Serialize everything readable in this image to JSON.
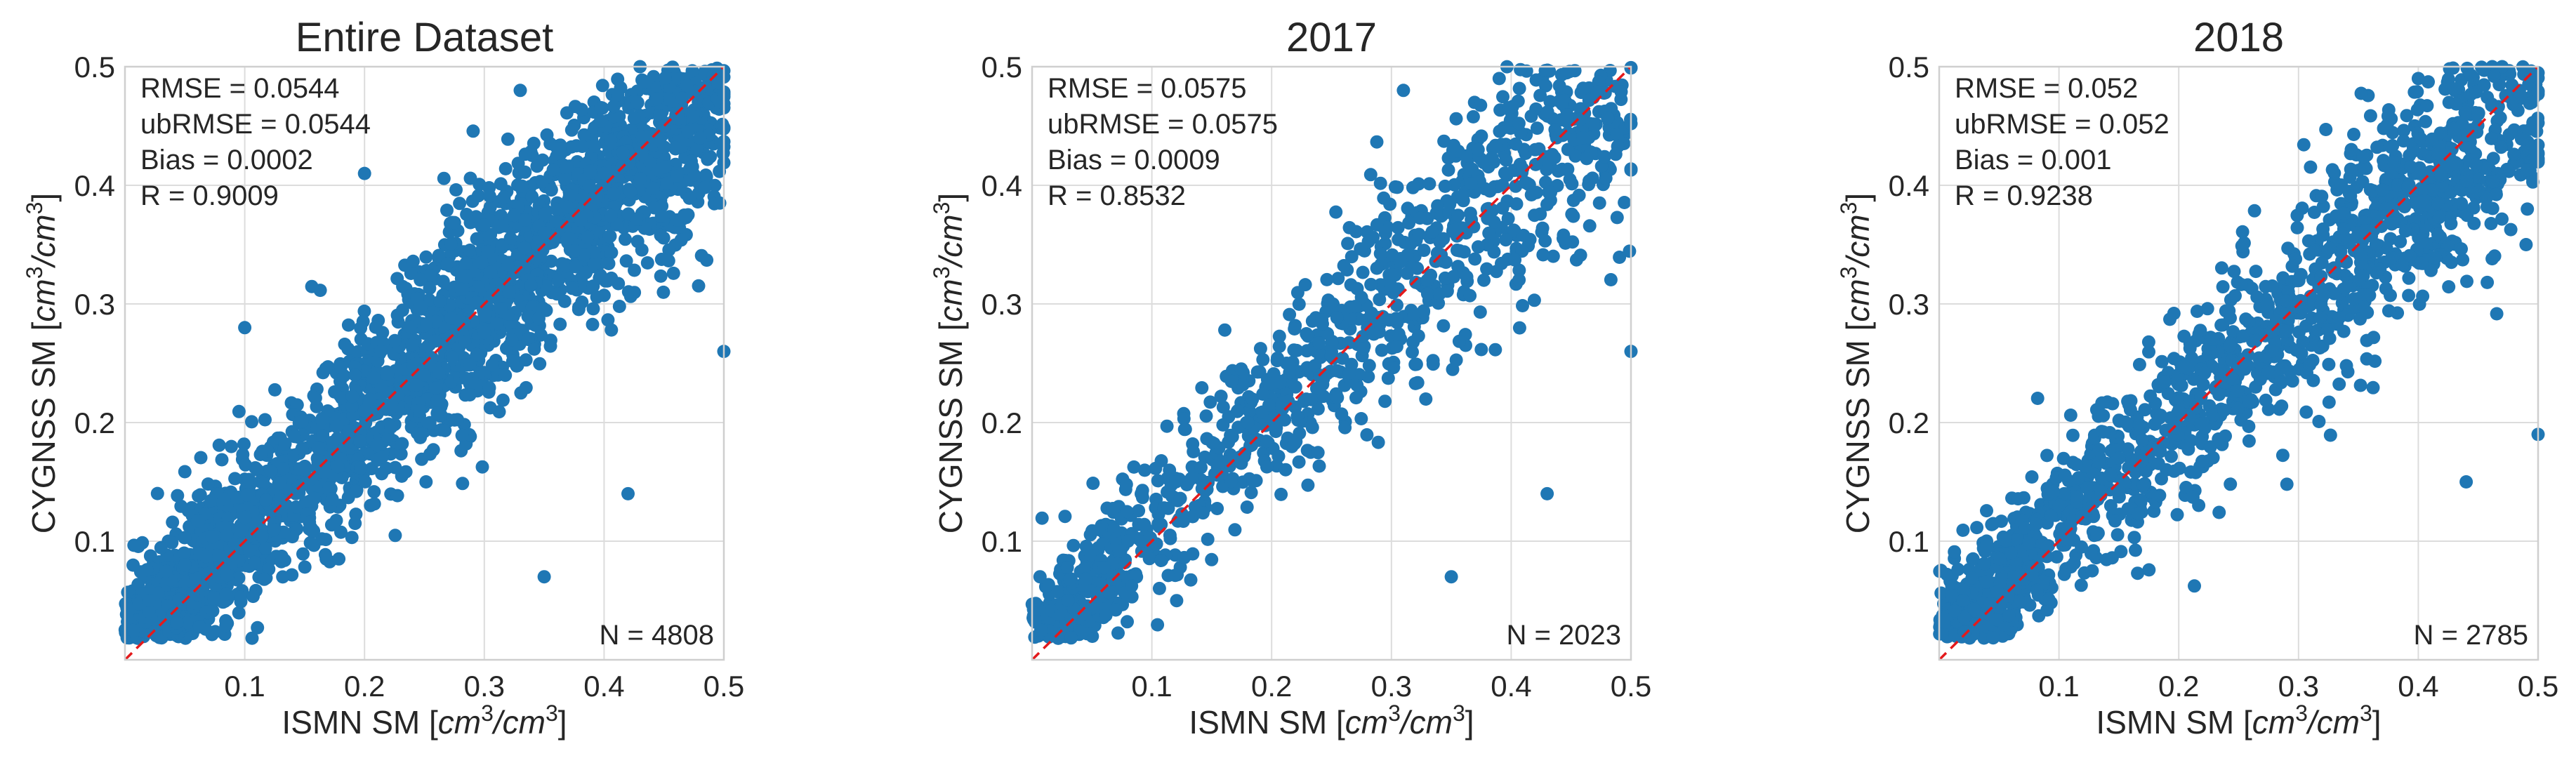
{
  "figure": {
    "colors": {
      "points": "#1f77b4",
      "line": "#e31a1c",
      "grid": "#dcdcdc",
      "frame": "#cfcfcf",
      "text": "#262626"
    }
  },
  "chart_data": [
    {
      "type": "scatter",
      "title": "Entire Dataset",
      "xlabel": {
        "prefix": "ISMN SM [",
        "unit_a": "cm",
        "sup_a": "3",
        "slash": "/",
        "unit_b": "cm",
        "sup_b": "3",
        "suffix": "]"
      },
      "ylabel": {
        "prefix": "CYGNSS SM [",
        "unit_a": "cm",
        "sup_a": "3",
        "slash": "/",
        "unit_b": "cm",
        "sup_b": "3",
        "suffix": "]"
      },
      "xlim": [
        0,
        0.5
      ],
      "ylim": [
        0,
        0.5
      ],
      "xticks": [
        "0.1",
        "0.2",
        "0.3",
        "0.4",
        "0.5"
      ],
      "yticks": [
        "0.1",
        "0.2",
        "0.3",
        "0.4",
        "0.5"
      ],
      "tick_values": [
        0.1,
        0.2,
        0.3,
        0.4,
        0.5
      ],
      "stats": [
        "RMSE = 0.0544",
        "ubRMSE = 0.0544",
        "Bias = 0.0002",
        "R = 0.9009"
      ],
      "n_label": "N = 4808",
      "n": 4808,
      "one_to_one_line": [
        [
          0,
          0
        ],
        [
          0.5,
          0.5
        ]
      ],
      "points_sample": [
        [
          0.02,
          0.05
        ],
        [
          0.05,
          0.08
        ],
        [
          0.1,
          0.12
        ],
        [
          0.15,
          0.16
        ],
        [
          0.2,
          0.21
        ],
        [
          0.25,
          0.24
        ],
        [
          0.3,
          0.29
        ],
        [
          0.35,
          0.36
        ],
        [
          0.4,
          0.41
        ],
        [
          0.45,
          0.45
        ],
        [
          0.48,
          0.44
        ],
        [
          0.43,
          0.5
        ],
        [
          0.33,
          0.48
        ],
        [
          0.2,
          0.41
        ],
        [
          0.1,
          0.28
        ],
        [
          0.42,
          0.14
        ],
        [
          0.35,
          0.07
        ],
        [
          0.5,
          0.26
        ]
      ],
      "seed": 11
    },
    {
      "type": "scatter",
      "title": "2017",
      "xlabel": {
        "prefix": "ISMN SM [",
        "unit_a": "cm",
        "sup_a": "3",
        "slash": "/",
        "unit_b": "cm",
        "sup_b": "3",
        "suffix": "]"
      },
      "ylabel": {
        "prefix": "CYGNSS SM [",
        "unit_a": "cm",
        "sup_a": "3",
        "slash": "/",
        "unit_b": "cm",
        "sup_b": "3",
        "suffix": "]"
      },
      "xlim": [
        0,
        0.5
      ],
      "ylim": [
        0,
        0.5
      ],
      "xticks": [
        "0.1",
        "0.2",
        "0.3",
        "0.4",
        "0.5"
      ],
      "yticks": [
        "0.1",
        "0.2",
        "0.3",
        "0.4",
        "0.5"
      ],
      "tick_values": [
        0.1,
        0.2,
        0.3,
        0.4,
        0.5
      ],
      "stats": [
        "RMSE = 0.0575",
        "ubRMSE = 0.0575",
        "Bias = 0.0009",
        "R = 0.8532"
      ],
      "n_label": "N = 2023",
      "n": 2023,
      "one_to_one_line": [
        [
          0,
          0
        ],
        [
          0.5,
          0.5
        ]
      ],
      "points_sample": [
        [
          0.03,
          0.05
        ],
        [
          0.08,
          0.1
        ],
        [
          0.12,
          0.15
        ],
        [
          0.18,
          0.2
        ],
        [
          0.22,
          0.23
        ],
        [
          0.28,
          0.28
        ],
        [
          0.33,
          0.32
        ],
        [
          0.38,
          0.38
        ],
        [
          0.42,
          0.43
        ],
        [
          0.46,
          0.44
        ],
        [
          0.39,
          0.49
        ],
        [
          0.31,
          0.48
        ],
        [
          0.43,
          0.14
        ],
        [
          0.35,
          0.07
        ],
        [
          0.5,
          0.26
        ]
      ],
      "seed": 23
    },
    {
      "type": "scatter",
      "title": "2018",
      "xlabel": {
        "prefix": "ISMN SM [",
        "unit_a": "cm",
        "sup_a": "3",
        "slash": "/",
        "unit_b": "cm",
        "sup_b": "3",
        "suffix": "]"
      },
      "ylabel": {
        "prefix": "CYGNSS SM [",
        "unit_a": "cm",
        "sup_a": "3",
        "slash": "/",
        "unit_b": "cm",
        "sup_b": "3",
        "suffix": "]"
      },
      "xlim": [
        0,
        0.5
      ],
      "ylim": [
        0,
        0.5
      ],
      "xticks": [
        "0.1",
        "0.2",
        "0.3",
        "0.4",
        "0.5"
      ],
      "yticks": [
        "0.1",
        "0.2",
        "0.3",
        "0.4",
        "0.5"
      ],
      "tick_values": [
        0.1,
        0.2,
        0.3,
        0.4,
        0.5
      ],
      "stats": [
        "RMSE = 0.052",
        "ubRMSE = 0.052",
        "Bias = 0.001",
        "R = 0.9238"
      ],
      "n_label": "N = 2785",
      "n": 2785,
      "one_to_one_line": [
        [
          0,
          0
        ],
        [
          0.5,
          0.5
        ]
      ],
      "points_sample": [
        [
          0.02,
          0.05
        ],
        [
          0.06,
          0.09
        ],
        [
          0.1,
          0.13
        ],
        [
          0.15,
          0.17
        ],
        [
          0.2,
          0.21
        ],
        [
          0.25,
          0.25
        ],
        [
          0.3,
          0.3
        ],
        [
          0.35,
          0.36
        ],
        [
          0.4,
          0.41
        ],
        [
          0.45,
          0.46
        ],
        [
          0.47,
          0.5
        ],
        [
          0.4,
          0.49
        ],
        [
          0.44,
          0.15
        ],
        [
          0.49,
          0.35
        ],
        [
          0.5,
          0.19
        ]
      ],
      "seed": 37
    }
  ]
}
